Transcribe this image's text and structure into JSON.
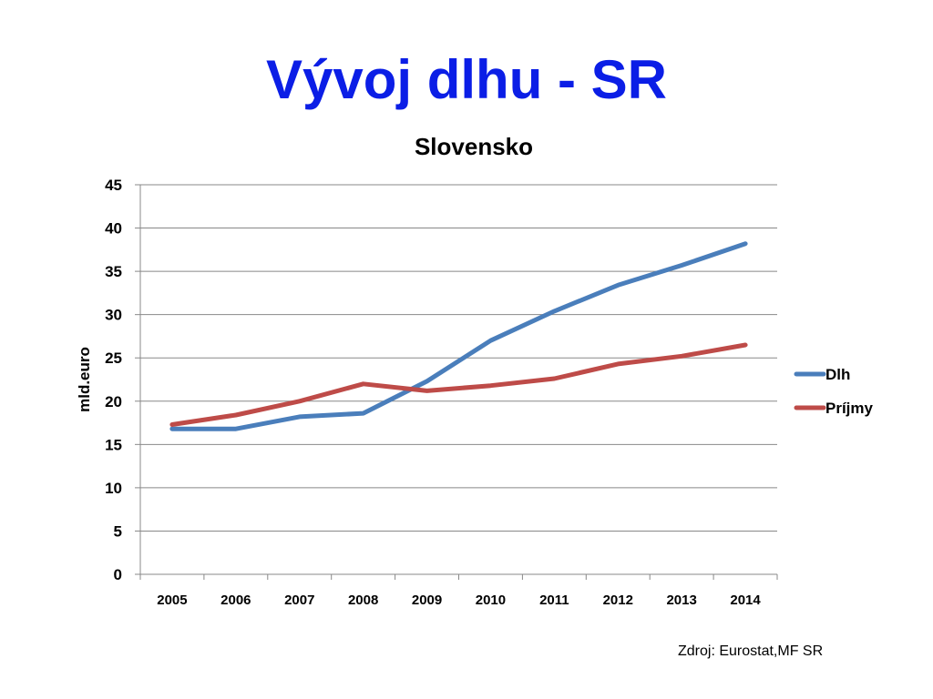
{
  "slide": {
    "title": "Vývoj dlhu - SR",
    "source": "Zdroj: Eurostat,MF SR"
  },
  "colors": {
    "title": "#0b1ee6",
    "dlh": "#4a7ebb",
    "prijmy": "#be4b48",
    "grid": "#888888"
  },
  "chart_data": {
    "type": "line",
    "title": "Slovensko",
    "ylabel": "mld.euro",
    "xlabel": "",
    "categories": [
      "2005",
      "2006",
      "2007",
      "2008",
      "2009",
      "2010",
      "2011",
      "2012",
      "2013",
      "2014"
    ],
    "yticks": [
      0,
      5,
      10,
      15,
      20,
      25,
      30,
      35,
      40,
      45
    ],
    "ylim": [
      0,
      45
    ],
    "grid": true,
    "legend_position": "right",
    "series": [
      {
        "name": "Dlh",
        "color": "#4a7ebb",
        "values": [
          16.8,
          16.8,
          18.2,
          18.6,
          22.3,
          27.0,
          30.4,
          33.4,
          35.7,
          38.2
        ]
      },
      {
        "name": "Príjmy",
        "color": "#be4b48",
        "values": [
          17.3,
          18.4,
          20.0,
          22.0,
          21.2,
          21.8,
          22.6,
          24.3,
          25.2,
          26.5
        ]
      }
    ]
  }
}
